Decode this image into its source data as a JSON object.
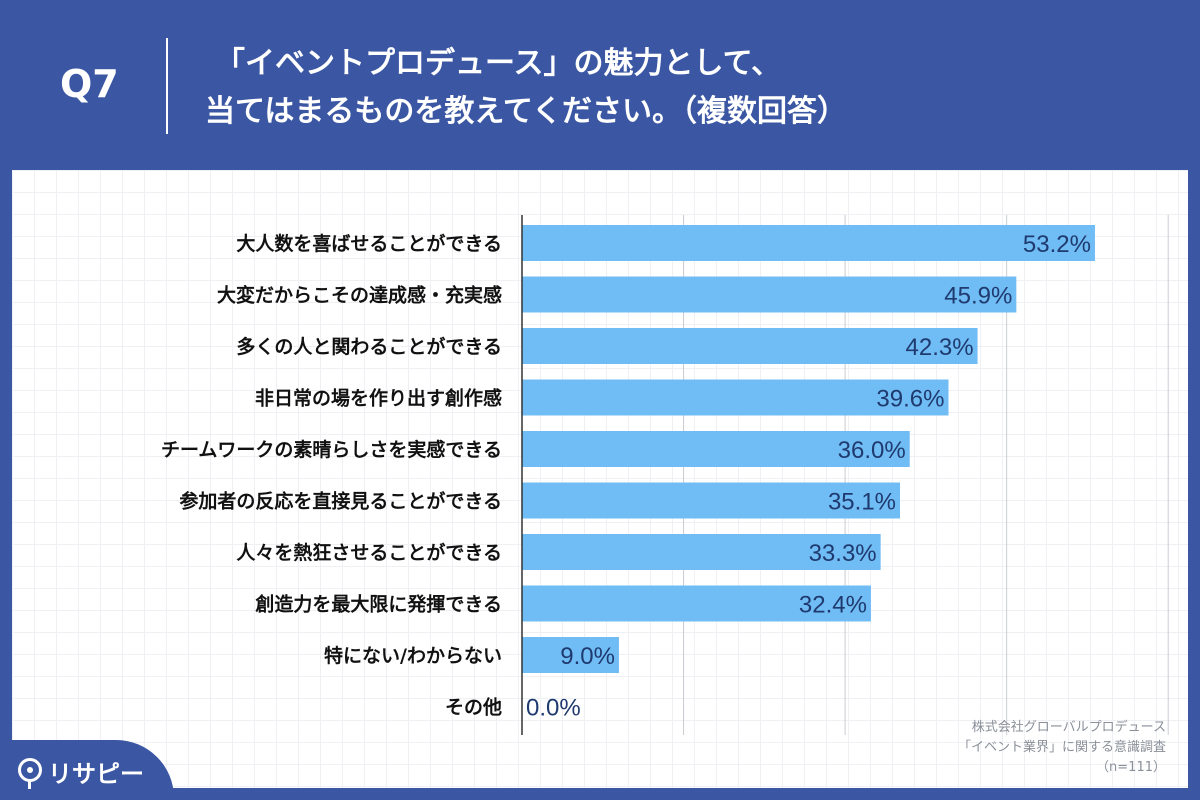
{
  "header": {
    "question_number": "Q7",
    "title_line1": "「イベントプロデュース」の魅力として、",
    "title_line2": "当てはまるものを教えてください。（複数回答）"
  },
  "colors": {
    "background": "#3b57a3",
    "bar": "#70bcf5",
    "value_text": "#1f3a6e"
  },
  "chart_data": {
    "type": "bar",
    "orientation": "horizontal",
    "categories": [
      "大人数を喜ばせることができる",
      "大変だからこその達成感・充実感",
      "多くの人と関わることができる",
      "非日常の場を作り出す創作感",
      "チームワークの素晴らしさを実感できる",
      "参加者の反応を直接見ることができる",
      "人々を熱狂させることができる",
      "創造力を最大限に発揮できる",
      "特にない/わからない",
      "その他"
    ],
    "values": [
      53.2,
      45.9,
      42.3,
      39.6,
      36.0,
      35.1,
      33.3,
      32.4,
      9.0,
      0.0
    ],
    "value_labels": [
      "53.2%",
      "45.9%",
      "42.3%",
      "39.6%",
      "36.0%",
      "35.1%",
      "33.3%",
      "32.4%",
      "9.0%",
      "0.0%"
    ],
    "xlim": [
      0,
      60
    ],
    "grid": true,
    "unit": "%"
  },
  "footer": {
    "source_line1": "株式会社グローバルプロデュース",
    "source_line2": "「イベント業界」に関する意識調査",
    "source_line3": "（n=111）"
  },
  "logo": {
    "text": "リサピー",
    "icon": "pin-icon"
  }
}
